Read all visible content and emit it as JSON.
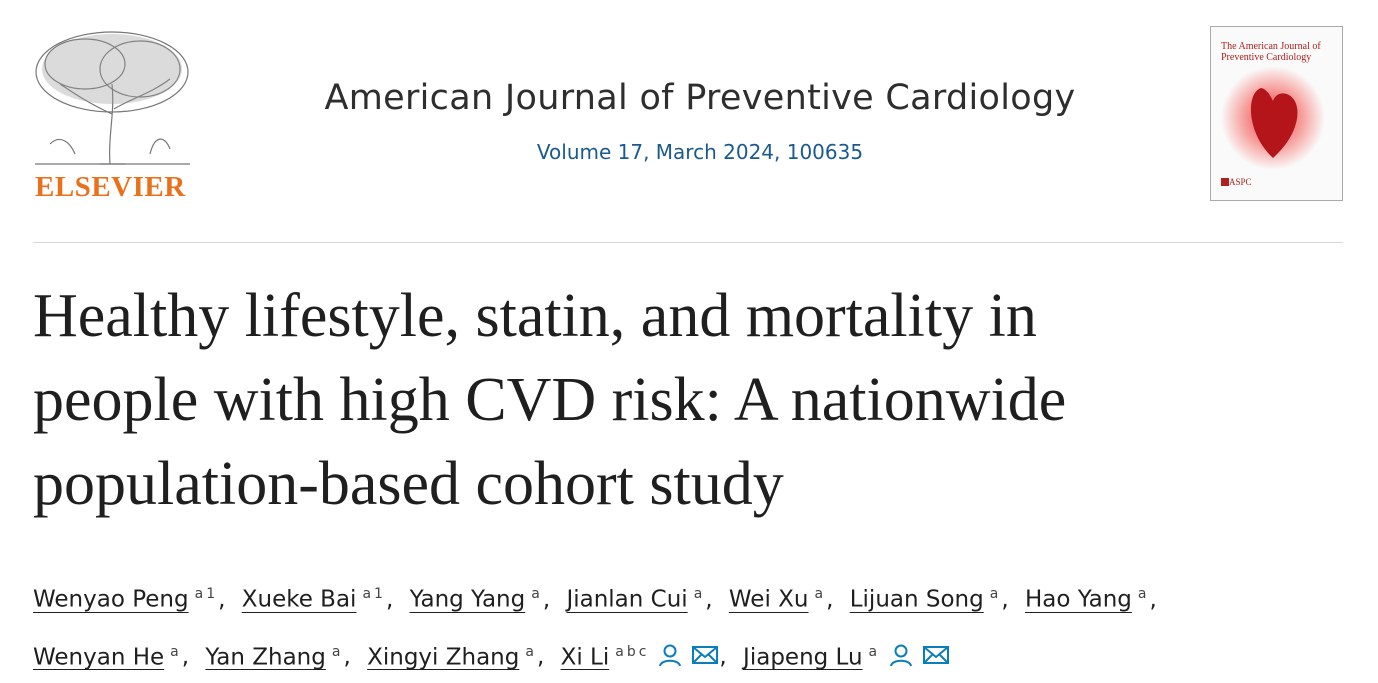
{
  "publisher": {
    "logo_text": "ELSEVIER"
  },
  "journal": {
    "title": "American Journal of Preventive Cardiology",
    "issue": "Volume 17, March 2024, 100635",
    "cover": {
      "title_lines": [
        "The American Journal of",
        "Preventive Cardiology"
      ],
      "society": "ASPC"
    }
  },
  "article": {
    "title_lines": [
      "Healthy lifestyle, statin, and mortality in",
      "people with high CVD risk: A nationwide",
      "population-based cohort study"
    ],
    "separator": ",",
    "authors": [
      {
        "name": "Wenyao Peng",
        "affiliations": [
          "a",
          "1"
        ]
      },
      {
        "name": "Xueke Bai",
        "affiliations": [
          "a",
          "1"
        ]
      },
      {
        "name": "Yang Yang",
        "affiliations": [
          "a"
        ]
      },
      {
        "name": "Jianlan Cui",
        "affiliations": [
          "a"
        ]
      },
      {
        "name": "Wei Xu",
        "affiliations": [
          "a"
        ]
      },
      {
        "name": "Lijuan Song",
        "affiliations": [
          "a"
        ]
      },
      {
        "name": "Hao Yang",
        "affiliations": [
          "a"
        ]
      },
      {
        "name": "Wenyan He",
        "affiliations": [
          "a"
        ]
      },
      {
        "name": "Yan Zhang",
        "affiliations": [
          "a"
        ]
      },
      {
        "name": "Xingyi Zhang",
        "affiliations": [
          "a"
        ]
      },
      {
        "name": "Xi Li",
        "affiliations": [
          "a",
          "b",
          "c"
        ]
      },
      {
        "name": "Jiapeng Lu",
        "affiliations": [
          "a"
        ]
      }
    ]
  }
}
